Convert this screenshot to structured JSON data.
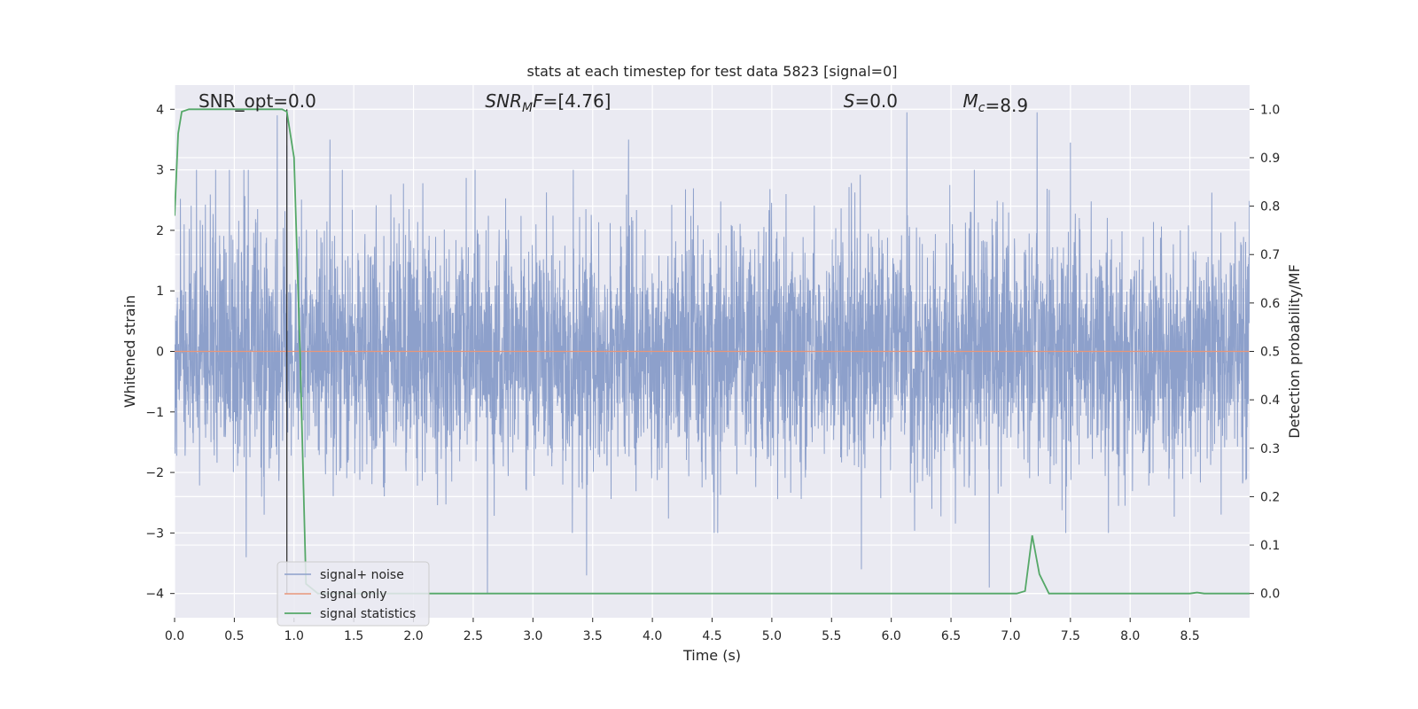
{
  "chart_data": {
    "type": "line",
    "title": "stats at each timestep for test data 5823 [signal=0]",
    "xlabel": "Time (s)",
    "ylabel": "Whitened strain",
    "y2label": "Detection probability/MF",
    "xlim": [
      0.0,
      9.0
    ],
    "ylim": [
      -4.4,
      4.4
    ],
    "y2lim": [
      -0.05,
      1.05
    ],
    "xticks": [
      "0.0",
      "0.5",
      "1.0",
      "1.5",
      "2.0",
      "2.5",
      "3.0",
      "3.5",
      "4.0",
      "4.5",
      "5.0",
      "5.5",
      "6.0",
      "6.5",
      "7.0",
      "7.5",
      "8.0",
      "8.5"
    ],
    "yticks": [
      "−4",
      "−3",
      "−2",
      "−1",
      "0",
      "1",
      "2",
      "3",
      "4"
    ],
    "y2ticks": [
      "0.0",
      "0.1",
      "0.2",
      "0.3",
      "0.4",
      "0.5",
      "0.6",
      "0.7",
      "0.8",
      "0.9",
      "1.0"
    ],
    "grid": true,
    "legend_position": "lower-left",
    "annotations": [
      {
        "prefix": "SNR_opt",
        "italic_prefix": false,
        "subscript": "",
        "suffix": "",
        "text": "=0.0",
        "x": 0.2
      },
      {
        "prefix": "SNR",
        "italic_prefix": true,
        "subscript": "M",
        "suffix": "F",
        "text": "=[4.76]",
        "x": 2.6
      },
      {
        "prefix": "S",
        "italic_prefix": true,
        "subscript": "",
        "suffix": "",
        "text": "=0.0",
        "x": 5.6
      },
      {
        "prefix": "M",
        "italic_prefix": true,
        "subscript": "c",
        "suffix": "",
        "text": "=8.9",
        "x": 6.6
      }
    ],
    "vline_x": 0.94,
    "series": [
      {
        "name": "signal+ noise",
        "color": "#8da0cb",
        "axis": "left",
        "style": "noise",
        "duration": 9.0,
        "sample_rate": 512,
        "amplitude": 1.0,
        "peaks": [
          [
            0.86,
            3.9
          ],
          [
            0.94,
            3.4
          ],
          [
            0.6,
            -3.4
          ],
          [
            2.62,
            -4.0
          ],
          [
            3.45,
            -3.7
          ],
          [
            5.75,
            -3.6
          ],
          [
            6.13,
            3.95
          ],
          [
            6.82,
            -3.9
          ],
          [
            7.22,
            3.95
          ],
          [
            7.5,
            3.45
          ],
          [
            3.8,
            3.5
          ],
          [
            1.3,
            3.5
          ]
        ]
      },
      {
        "name": "signal only",
        "color": "#e8967a",
        "axis": "left",
        "x": [
          0.0,
          9.0
        ],
        "values": [
          0.0,
          0.0
        ]
      },
      {
        "name": "signal statistics",
        "color": "#55a868",
        "axis": "right",
        "x": [
          0.0,
          0.03,
          0.06,
          0.12,
          0.9,
          0.94,
          1.0,
          1.05,
          1.1,
          1.2,
          6.8,
          7.05,
          7.12,
          7.18,
          7.24,
          7.32,
          8.5,
          8.56,
          8.62,
          9.0
        ],
        "values": [
          0.78,
          0.95,
          0.995,
          1.0,
          1.0,
          0.995,
          0.9,
          0.5,
          0.02,
          0.0,
          0.0,
          0.0,
          0.005,
          0.12,
          0.04,
          0.0,
          0.0,
          0.002,
          0.0,
          0.0
        ]
      }
    ]
  }
}
